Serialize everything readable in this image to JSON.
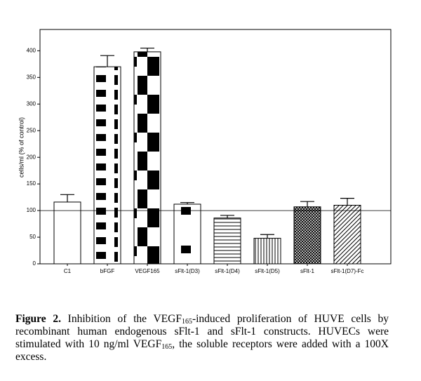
{
  "chart_data": {
    "type": "bar",
    "ylabel": "cells/ml (% of control)",
    "categories": [
      "C1",
      "bFGF",
      "VEGF165",
      "sFlt-1(D3)",
      "sFlt-1(D4)",
      "sFlt-1(D5)",
      "sFlt-1",
      "sFlt-1(D7)-Fc"
    ],
    "values": [
      116,
      370,
      398,
      112,
      86,
      48,
      107,
      110
    ],
    "errors": [
      14,
      21,
      7,
      3,
      5,
      7,
      10,
      13
    ],
    "patterns": [
      "none",
      "bricks",
      "checker",
      "blocks",
      "hlines",
      "vlines",
      "crosshatch",
      "diagonal"
    ],
    "color": "#000000",
    "reference_line": 100,
    "ylim": [
      0,
      440
    ],
    "yticks": [
      0,
      50,
      100,
      150,
      200,
      250,
      300,
      350,
      400
    ]
  },
  "caption": {
    "label": "Figure 2.",
    "parts": [
      " Inhibition of the VEGF",
      "165",
      "-induced proliferation of HUVE cells by recombinant human endogenous sFlt-1 and sFlt-1 constructs. HUVECs were stimulated with 10 ng/ml VEGF",
      "165",
      ", the soluble receptors were added with a 100X excess."
    ]
  }
}
